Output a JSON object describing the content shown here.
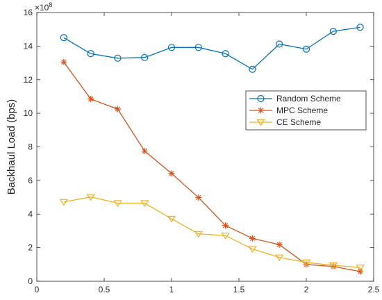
{
  "chart_data": {
    "type": "line",
    "ylabel": "Backhaul Load (bps)",
    "xlabel": "",
    "y_exponent_base": "×10",
    "y_exponent_power": "8",
    "xlim": [
      0,
      2.5
    ],
    "ylim": [
      0,
      16
    ],
    "x_ticks": [
      0,
      0.5,
      1,
      1.5,
      2,
      2.5
    ],
    "x_tick_labels": [
      "0",
      "0.5",
      "1",
      "1.5",
      "2",
      "2.5"
    ],
    "y_ticks": [
      0,
      2,
      4,
      6,
      8,
      10,
      12,
      14,
      16
    ],
    "y_tick_labels": [
      "0",
      "2",
      "4",
      "6",
      "8",
      "10",
      "12",
      "14",
      "16"
    ],
    "grid": false,
    "legend_position": "right",
    "x": [
      0.2,
      0.4,
      0.6,
      0.8,
      1.0,
      1.2,
      1.4,
      1.6,
      1.8,
      2.0,
      2.2,
      2.4
    ],
    "series": [
      {
        "name": "Random Scheme",
        "color": "#0072BD",
        "marker": "circle",
        "values": [
          14.5,
          13.55,
          13.28,
          13.32,
          13.92,
          13.92,
          13.55,
          12.62,
          14.12,
          13.82,
          14.88,
          15.12
        ]
      },
      {
        "name": "MPC Scheme",
        "color": "#D95319",
        "marker": "asterisk",
        "values": [
          13.05,
          10.85,
          10.25,
          7.75,
          6.42,
          4.98,
          3.32,
          2.55,
          2.18,
          1.0,
          0.88,
          0.58
        ]
      },
      {
        "name": "CE Scheme",
        "color": "#EDB120",
        "marker": "triangle-down",
        "values": [
          4.72,
          5.02,
          4.65,
          4.65,
          3.72,
          2.82,
          2.72,
          1.92,
          1.42,
          1.12,
          0.95,
          0.82
        ]
      }
    ]
  }
}
